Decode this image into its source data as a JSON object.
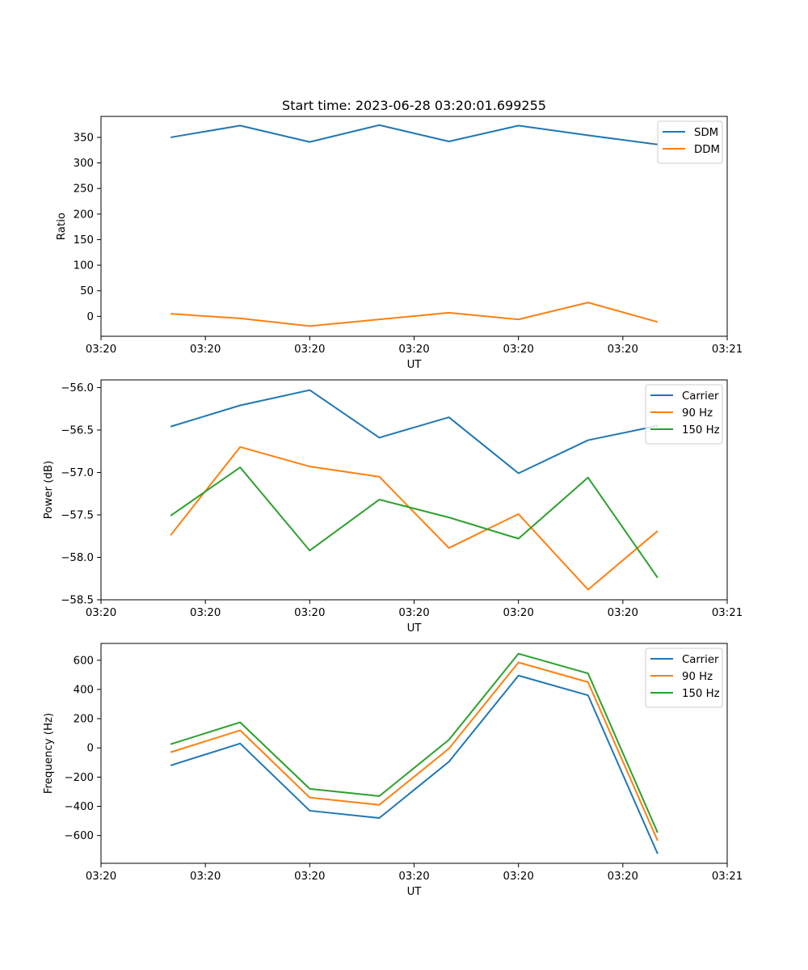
{
  "figure": {
    "title": "Start time: 2023-06-28 03:20:01.699255"
  },
  "chart_data": [
    {
      "type": "line",
      "title": "Start time: 2023-06-28 03:20:01.699255",
      "xlabel": "UT",
      "ylabel": "Ratio",
      "x_index": [
        1,
        2,
        3,
        4,
        5,
        6,
        7,
        8
      ],
      "xlim": [
        0,
        9
      ],
      "x_ticks": [
        0,
        1.5,
        3,
        4.5,
        6,
        7.5,
        9
      ],
      "x_tick_labels": [
        "03:20",
        "03:20",
        "03:20",
        "03:20",
        "03:20",
        "03:20",
        "03:21"
      ],
      "ylim": [
        -39,
        391
      ],
      "y_ticks": [
        0,
        50,
        100,
        150,
        200,
        250,
        300,
        350
      ],
      "y_tick_labels": [
        "0",
        "50",
        "100",
        "150",
        "200",
        "250",
        "300",
        "350"
      ],
      "grid": false,
      "legend_position": "top-right",
      "series": [
        {
          "name": "SDM",
          "color": "#1f77b4",
          "values": [
            350,
            373,
            341,
            374,
            342,
            373,
            354,
            336
          ]
        },
        {
          "name": "DDM",
          "color": "#ff7f0e",
          "values": [
            5,
            -4,
            -19,
            -6,
            7,
            -6,
            27,
            -11
          ]
        }
      ]
    },
    {
      "type": "line",
      "xlabel": "UT",
      "ylabel": "Power (dB)",
      "x_index": [
        1,
        2,
        3,
        4,
        5,
        6,
        7,
        8
      ],
      "xlim": [
        0,
        9
      ],
      "x_ticks": [
        0,
        1.5,
        3,
        4.5,
        6,
        7.5,
        9
      ],
      "x_tick_labels": [
        "03:20",
        "03:20",
        "03:20",
        "03:20",
        "03:20",
        "03:20",
        "03:21"
      ],
      "ylim": [
        -58.5,
        -55.91
      ],
      "y_ticks": [
        -58.5,
        -58.0,
        -57.5,
        -57.0,
        -56.5,
        -56.0
      ],
      "y_tick_labels": [
        "−58.5",
        "−58.0",
        "−57.5",
        "−57.0",
        "−56.5",
        "−56.0"
      ],
      "grid": false,
      "legend_position": "top-right",
      "series": [
        {
          "name": "Carrier",
          "color": "#1f77b4",
          "values": [
            -56.46,
            -56.21,
            -56.03,
            -56.59,
            -56.35,
            -57.01,
            -56.62,
            -56.45
          ]
        },
        {
          "name": "90 Hz",
          "color": "#ff7f0e",
          "values": [
            -57.74,
            -56.7,
            -56.93,
            -57.05,
            -57.89,
            -57.49,
            -58.38,
            -57.69
          ]
        },
        {
          "name": "150 Hz",
          "color": "#2ca02c",
          "values": [
            -57.51,
            -56.94,
            -57.92,
            -57.32,
            -57.53,
            -57.78,
            -57.06,
            -58.24
          ]
        }
      ]
    },
    {
      "type": "line",
      "xlabel": "UT",
      "ylabel": "Frequency (Hz)",
      "x_index": [
        1,
        2,
        3,
        4,
        5,
        6,
        7,
        8
      ],
      "xlim": [
        0,
        9
      ],
      "x_ticks": [
        0,
        1.5,
        3,
        4.5,
        6,
        7.5,
        9
      ],
      "x_tick_labels": [
        "03:20",
        "03:20",
        "03:20",
        "03:20",
        "03:20",
        "03:20",
        "03:21"
      ],
      "ylim": [
        -790,
        715
      ],
      "y_ticks": [
        -600,
        -400,
        -200,
        0,
        200,
        400,
        600
      ],
      "y_tick_labels": [
        "−600",
        "−400",
        "−200",
        "0",
        "200",
        "400",
        "600"
      ],
      "grid": false,
      "legend_position": "top-right",
      "series": [
        {
          "name": "Carrier",
          "color": "#1f77b4",
          "values": [
            -120,
            30,
            -430,
            -480,
            -95,
            495,
            360,
            -725
          ]
        },
        {
          "name": "90 Hz",
          "color": "#ff7f0e",
          "values": [
            -30,
            120,
            -340,
            -390,
            -5,
            585,
            450,
            -635
          ]
        },
        {
          "name": "150 Hz",
          "color": "#2ca02c",
          "values": [
            25,
            175,
            -280,
            -330,
            55,
            645,
            510,
            -580
          ]
        }
      ]
    }
  ]
}
